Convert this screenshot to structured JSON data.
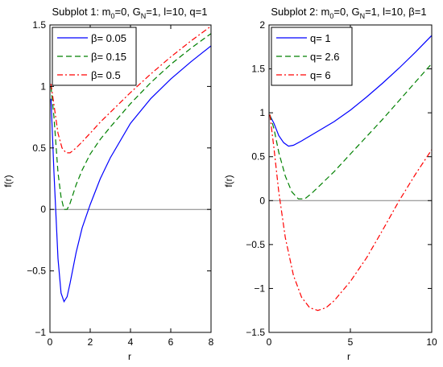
{
  "chart_data": [
    {
      "type": "line",
      "title": "Subplot 1: m₀=0, G_N=1, l=10, q=1",
      "title_parts": {
        "a": "Subplot 1: m",
        "sub1": "0",
        "b": "=0, G",
        "sub2": "N",
        "c": "=1, l=10, q=1"
      },
      "xlabel": "r",
      "ylabel": "f(r)",
      "xlim": [
        0,
        8
      ],
      "ylim": [
        -1,
        1.5
      ],
      "xticks": [
        0,
        2,
        4,
        6,
        8
      ],
      "yticks": [
        -1,
        -0.5,
        0,
        0.5,
        1,
        1.5
      ],
      "xtick_labels": [
        "0",
        "2",
        "4",
        "6",
        "8"
      ],
      "ytick_labels": [
        "−1",
        "−0.5",
        "0",
        "0.5",
        "1",
        "1.5"
      ],
      "reference_line_y": 0,
      "grid": false,
      "legend_position": "top-left",
      "series": [
        {
          "name": "β= 0.05",
          "color": "#0000ff",
          "dash": "solid",
          "x": [
            0.05,
            0.2,
            0.4,
            0.55,
            0.7,
            0.85,
            1.0,
            1.3,
            1.6,
            2.0,
            2.5,
            3.0,
            4.0,
            5.0,
            6.0,
            7.0,
            8.0
          ],
          "y": [
            0.9,
            0.3,
            -0.4,
            -0.68,
            -0.75,
            -0.71,
            -0.6,
            -0.35,
            -0.15,
            0.04,
            0.25,
            0.42,
            0.7,
            0.9,
            1.06,
            1.2,
            1.33
          ]
        },
        {
          "name": "β= 0.15",
          "color": "#008000",
          "dash": "dashed",
          "x": [
            0.05,
            0.2,
            0.4,
            0.55,
            0.7,
            0.85,
            1.0,
            1.3,
            1.6,
            2.0,
            2.5,
            3.0,
            4.0,
            5.0,
            6.0,
            7.0,
            8.0
          ],
          "y": [
            1.0,
            0.75,
            0.3,
            0.1,
            0.0,
            0.0,
            0.05,
            0.2,
            0.32,
            0.45,
            0.57,
            0.67,
            0.86,
            1.03,
            1.18,
            1.31,
            1.43
          ]
        },
        {
          "name": "β= 0.5",
          "color": "#ff0000",
          "dash": "dashdot",
          "x": [
            0.05,
            0.2,
            0.4,
            0.6,
            0.8,
            1.0,
            1.3,
            1.6,
            2.0,
            2.5,
            3.0,
            4.0,
            5.0,
            6.0,
            7.0,
            8.0
          ],
          "y": [
            1.02,
            0.85,
            0.62,
            0.5,
            0.46,
            0.46,
            0.5,
            0.55,
            0.62,
            0.71,
            0.79,
            0.95,
            1.1,
            1.24,
            1.37,
            1.49
          ]
        }
      ]
    },
    {
      "type": "line",
      "title": "Subplot 2: m₀=0, G_N=1, l=10, β=1",
      "title_parts": {
        "a": "Subplot 2: m",
        "sub1": "0",
        "b": "=0, G",
        "sub2": "N",
        "c": "=1, l=10, β=1"
      },
      "xlabel": "r",
      "ylabel": "f(r)",
      "xlim": [
        0,
        10
      ],
      "ylim": [
        -1.5,
        2
      ],
      "xticks": [
        0,
        5,
        10
      ],
      "yticks": [
        -1.5,
        -1,
        -0.5,
        0,
        0.5,
        1,
        1.5,
        2
      ],
      "xtick_labels": [
        "0",
        "5",
        "10"
      ],
      "ytick_labels": [
        "−1.5",
        "−1",
        "−0.5",
        "0",
        "0.5",
        "1",
        "1.5",
        "2"
      ],
      "reference_line_y": 0,
      "grid": false,
      "legend_position": "top-left",
      "series": [
        {
          "name": "q= 1",
          "color": "#0000ff",
          "dash": "solid",
          "x": [
            0.05,
            0.3,
            0.6,
            0.9,
            1.2,
            1.5,
            2.0,
            3.0,
            4.0,
            5.0,
            6.0,
            7.0,
            8.0,
            9.0,
            10.0
          ],
          "y": [
            0.97,
            0.88,
            0.74,
            0.66,
            0.62,
            0.63,
            0.68,
            0.79,
            0.9,
            1.03,
            1.18,
            1.34,
            1.51,
            1.69,
            1.88
          ]
        },
        {
          "name": "q= 2.6",
          "color": "#008000",
          "dash": "dashed",
          "x": [
            0.05,
            0.3,
            0.6,
            1.0,
            1.4,
            1.8,
            2.2,
            2.6,
            3.0,
            4.0,
            5.0,
            6.0,
            7.0,
            8.0,
            9.0,
            10.0
          ],
          "y": [
            0.98,
            0.82,
            0.55,
            0.28,
            0.1,
            0.02,
            0.02,
            0.08,
            0.15,
            0.33,
            0.53,
            0.73,
            0.93,
            1.14,
            1.35,
            1.56
          ]
        },
        {
          "name": "q= 6",
          "color": "#ff0000",
          "dash": "dashdot",
          "x": [
            0.05,
            0.3,
            0.6,
            1.0,
            1.5,
            2.0,
            2.5,
            3.0,
            3.5,
            4.0,
            5.0,
            6.0,
            7.0,
            8.0,
            9.0,
            10.0
          ],
          "y": [
            0.98,
            0.6,
            0.1,
            -0.42,
            -0.85,
            -1.1,
            -1.22,
            -1.25,
            -1.22,
            -1.14,
            -0.92,
            -0.65,
            -0.33,
            0.0,
            0.3,
            0.58
          ]
        }
      ]
    }
  ]
}
